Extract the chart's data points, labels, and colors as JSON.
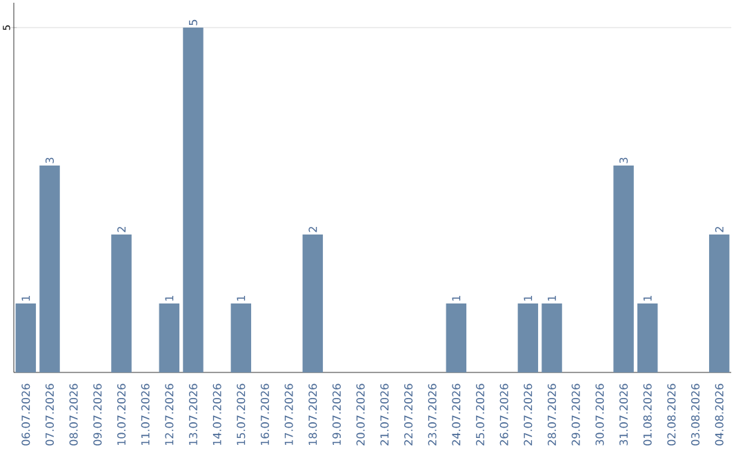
{
  "chart_data": {
    "type": "bar",
    "categories": [
      "06.07.2026",
      "07.07.2026",
      "08.07.2026",
      "09.07.2026",
      "10.07.2026",
      "11.07.2026",
      "12.07.2026",
      "13.07.2026",
      "14.07.2026",
      "15.07.2026",
      "16.07.2026",
      "17.07.2026",
      "18.07.2026",
      "19.07.2026",
      "20.07.2026",
      "21.07.2026",
      "22.07.2026",
      "23.07.2026",
      "24.07.2026",
      "25.07.2026",
      "26.07.2026",
      "27.07.2026",
      "28.07.2026",
      "29.07.2026",
      "30.07.2026",
      "31.07.2026",
      "01.08.2026",
      "02.08.2026",
      "03.08.2026",
      "04.08.2026"
    ],
    "values": [
      1,
      3,
      0,
      0,
      2,
      0,
      1,
      5,
      0,
      1,
      0,
      0,
      2,
      0,
      0,
      0,
      0,
      0,
      1,
      0,
      0,
      1,
      1,
      0,
      0,
      3,
      1,
      0,
      0,
      2
    ],
    "value_labels": [
      "1",
      "3",
      null,
      null,
      "2",
      null,
      "1",
      "5",
      null,
      "1",
      null,
      null,
      "2",
      null,
      null,
      null,
      null,
      null,
      "1",
      null,
      null,
      "1",
      "1",
      null,
      null,
      "3",
      "1",
      null,
      null,
      "2"
    ],
    "color": "#6d8cab",
    "ylim": [
      0,
      5.36
    ],
    "yticks": [
      5
    ],
    "grid": "y"
  }
}
